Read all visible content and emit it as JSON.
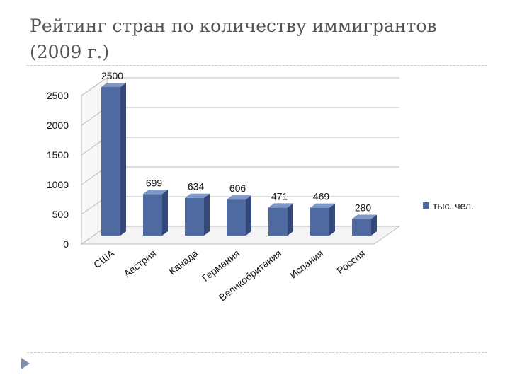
{
  "slide": {
    "title_line1": "Рейтинг стран по количеству иммигрантов",
    "title_line2": "(2009 г.)"
  },
  "colors": {
    "bar_front": "#4f6aa0",
    "bar_side": "#34497a",
    "bar_top": "#7f98c8",
    "grid": "#bdbdbd",
    "title": "#555555",
    "nav_arrow": "#7a8fa8"
  },
  "icons": {
    "nav": "next-slide-arrow-icon"
  },
  "chart_data": {
    "type": "bar",
    "style": "3d-columns",
    "categories": [
      "США",
      "Австрия",
      "Канада",
      "Германия",
      "Великобритания",
      "Испания",
      "Россия"
    ],
    "series": [
      {
        "name": "тыс. чел.",
        "values": [
          2500,
          699,
          634,
          606,
          471,
          469,
          280
        ]
      }
    ],
    "data_labels": [
      "2500",
      "699",
      "634",
      "606",
      "471",
      "469",
      "280"
    ],
    "y_ticks": [
      0,
      500,
      1000,
      1500,
      2000,
      2500
    ],
    "ylim": [
      0,
      2500
    ],
    "grid": true,
    "legend_position": "right",
    "title": "",
    "xlabel": "",
    "ylabel": ""
  }
}
